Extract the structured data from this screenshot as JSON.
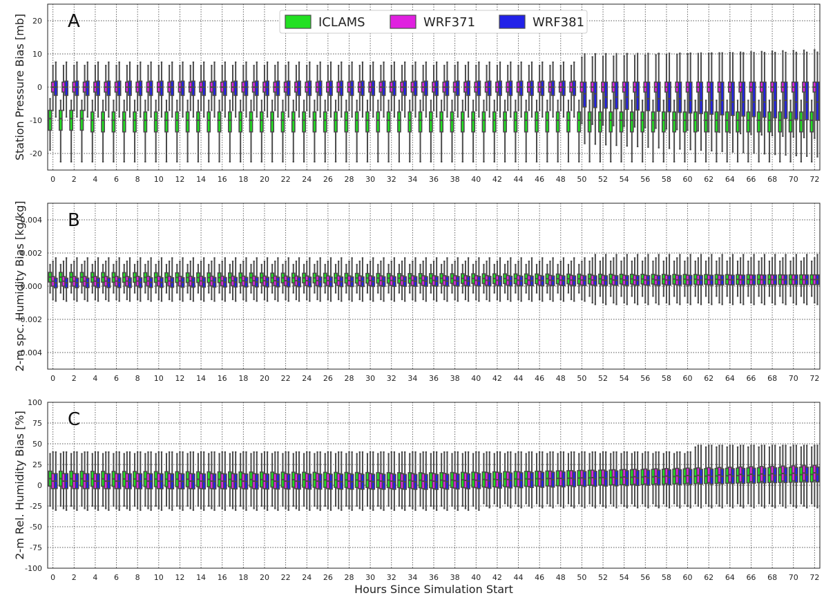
{
  "colors": {
    "ICLAMS": "#22e022",
    "WRF371": "#e020e0",
    "WRF381": "#2222e8",
    "edge": "#4a4a4a",
    "grid": "#555555"
  },
  "xlabel": "Hours Since Simulation Start",
  "legend": {
    "placement": "top-center of panel A",
    "entries": [
      "ICLAMS",
      "WRF371",
      "WRF381"
    ]
  },
  "chart_data": [
    {
      "type": "box",
      "panel_label": "A",
      "title": "",
      "ylabel": "Station Pressure Bias [mb]",
      "ylim": [
        -25,
        25
      ],
      "yticks": [
        -20,
        -10,
        0,
        10,
        20
      ],
      "x": [
        0,
        1,
        2,
        3,
        4,
        5,
        6,
        7,
        8,
        9,
        10,
        11,
        12,
        13,
        14,
        15,
        16,
        17,
        18,
        19,
        20,
        21,
        22,
        23,
        24,
        25,
        26,
        27,
        28,
        29,
        30,
        31,
        32,
        33,
        34,
        35,
        36,
        37,
        38,
        39,
        40,
        41,
        42,
        43,
        44,
        45,
        46,
        47,
        48,
        49,
        50,
        51,
        52,
        53,
        54,
        55,
        56,
        57,
        58,
        59,
        60,
        61,
        62,
        63,
        64,
        65,
        66,
        67,
        68,
        69,
        70,
        71,
        72
      ],
      "xticks": [
        0,
        2,
        4,
        6,
        8,
        10,
        12,
        14,
        16,
        18,
        20,
        22,
        24,
        26,
        28,
        30,
        32,
        34,
        36,
        38,
        40,
        42,
        44,
        46,
        48,
        50,
        52,
        54,
        56,
        58,
        60,
        62,
        64,
        66,
        68,
        70,
        72
      ],
      "grid": true,
      "series": [
        {
          "name": "ICLAMS",
          "median": [
            -9.5,
            -9.5,
            -9.5,
            -9.5,
            -10,
            -10,
            -10,
            -10,
            -10,
            -10,
            -10,
            -10,
            -10,
            -10,
            -10,
            -10,
            -10,
            -10,
            -10,
            -10,
            -10,
            -10,
            -10,
            -10,
            -10,
            -10,
            -10,
            -10,
            -10,
            -10,
            -10,
            -10,
            -10,
            -10,
            -10,
            -10,
            -10,
            -10,
            -10,
            -10,
            -10,
            -10,
            -10,
            -10,
            -10,
            -10,
            -10,
            -10,
            -10,
            -10,
            -10,
            -10,
            -10,
            -10,
            -10,
            -10,
            -10,
            -10,
            -10,
            -10,
            -10,
            -10,
            -10,
            -10,
            -10,
            -10,
            -10,
            -10,
            -10,
            -10,
            -10,
            -10,
            -10
          ],
          "q1": -13,
          "q3": -7.5,
          "whislo": -22.5,
          "whishi": -4,
          "whislo_0": -19,
          "whishi_0": -3.5
        },
        {
          "name": "WRF371",
          "median": [
            0,
            0,
            0,
            0,
            0,
            0,
            0,
            0,
            0,
            0,
            0,
            0,
            0,
            0,
            0,
            0,
            0,
            0,
            0,
            0,
            0,
            0,
            0,
            0,
            0,
            0,
            0,
            0,
            0,
            0,
            0,
            0,
            0,
            0,
            0,
            0,
            0,
            0,
            0,
            0,
            0,
            0,
            0,
            0,
            0,
            0,
            0,
            0,
            0,
            0,
            0,
            0,
            0,
            0,
            0,
            0,
            0,
            0,
            0,
            0,
            0,
            0,
            0,
            0,
            0,
            0,
            0,
            0,
            0,
            0,
            0,
            0,
            0
          ],
          "q1": -2,
          "q3": 2,
          "whislo": -7,
          "whishi": 6.5
        },
        {
          "name": "WRF381",
          "median": [
            0,
            0,
            0,
            0,
            0,
            0,
            0,
            0,
            0,
            0,
            0,
            0,
            0,
            0,
            0,
            0,
            0,
            0,
            0,
            0,
            0,
            0,
            0,
            0,
            0,
            0,
            0,
            0,
            0,
            0,
            0,
            0,
            0,
            0,
            0,
            0,
            0,
            0,
            0,
            0,
            0,
            0,
            0,
            0,
            0,
            0,
            0,
            0,
            0,
            0,
            -2,
            -2,
            -3,
            -3,
            -3,
            -3,
            -3.5,
            -3.5,
            -3.5,
            -3.5,
            -4,
            -4,
            -4,
            -4,
            -4.5,
            -4.5,
            -4.5,
            -4.5,
            -4,
            -4,
            -4.5,
            -4.5,
            -4.5
          ],
          "q1": -2.5,
          "q3": 2,
          "whislo": -9,
          "whishi": 7.5,
          "q1_late": -9,
          "whislo_late": -20,
          "whishi_late": 11
        }
      ]
    },
    {
      "type": "box",
      "panel_label": "B",
      "title": "",
      "ylabel": "2-m spc. Humidity Bias [kg/kg]",
      "ylim": [
        -0.005,
        0.005
      ],
      "yticks": [
        -0.004,
        -0.002,
        0.0,
        0.002,
        0.004
      ],
      "ytick_labels": [
        "-0.004",
        "-0.002",
        "0.000",
        "0.002",
        "0.004"
      ],
      "grid": true,
      "series": [
        {
          "name": "ICLAMS",
          "median_start": 0.00055,
          "median_end": 0.0004,
          "q1": 0.0002,
          "q3": 0.0007,
          "whislo": -0.0004,
          "whishi": 0.0013
        },
        {
          "name": "WRF371",
          "median_start": 0.0003,
          "median_end": 0.0004,
          "q1": 0.0,
          "q3": 0.0008,
          "whislo": -0.0008,
          "whishi": 0.0015
        },
        {
          "name": "WRF381",
          "median_start": 0.0002,
          "median_end": 0.0004,
          "q1": -0.0002,
          "q3": 0.0007,
          "whislo": -0.0009,
          "whishi": 0.0017
        }
      ]
    },
    {
      "type": "box",
      "panel_label": "C",
      "title": "",
      "ylabel": "2-m Rel. Humidity Bias [%]",
      "ylim": [
        -100,
        100
      ],
      "yticks": [
        -100,
        -75,
        -50,
        -25,
        0,
        25,
        50,
        75,
        100
      ],
      "grid": true,
      "series": [
        {
          "name": "ICLAMS",
          "median_start": 8,
          "median_mid": 6,
          "median_end": 13,
          "q1": -2,
          "q3": 17,
          "whislo": -25,
          "whishi": 38
        },
        {
          "name": "WRF371",
          "median_start": 5,
          "median_mid": 5,
          "median_end": 15,
          "q1": -5,
          "q3": 15,
          "whislo": -28,
          "whishi": 40
        },
        {
          "name": "WRF381",
          "median_start": 5,
          "median_mid": 4,
          "median_end": 13,
          "q1": -5,
          "q3": 14,
          "whislo": -30,
          "whishi": 40
        }
      ]
    }
  ]
}
